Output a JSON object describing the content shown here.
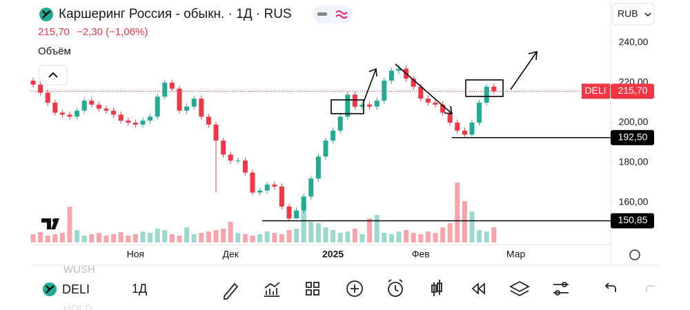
{
  "header": {
    "title": "Каршеринг Россия - обыкн. · 1Д · RUS",
    "price": "215,70",
    "change": "−2,30 (−1,06%)",
    "volume_label": "Объём",
    "currency": "RUB"
  },
  "chart_data": {
    "type": "candlestick",
    "categories": [
      null,
      null,
      null,
      null,
      null,
      null,
      null,
      null,
      null,
      null,
      null,
      null,
      null,
      null,
      "Ноя",
      null,
      null,
      null,
      null,
      null,
      null,
      null,
      null,
      null,
      null,
      null,
      null,
      "Дек",
      null,
      null,
      null,
      null,
      null,
      null,
      null,
      null,
      null,
      null,
      null,
      null,
      null,
      "2025",
      null,
      null,
      null,
      null,
      null,
      null,
      null,
      null,
      null,
      null,
      null,
      "Фев",
      null,
      null,
      null,
      null,
      null,
      null,
      null,
      null,
      null,
      null,
      null,
      null,
      "Мар",
      null
    ],
    "open": [
      221,
      219,
      215,
      210,
      205,
      204,
      203,
      206,
      211,
      209,
      207,
      206,
      204,
      201,
      200,
      199,
      201,
      203,
      213,
      220,
      217,
      206,
      208,
      212,
      203,
      199,
      191,
      184,
      181,
      181,
      175,
      165,
      166,
      169,
      168,
      158,
      152,
      156,
      163,
      172,
      183,
      191,
      196,
      203,
      214,
      208,
      209,
      208,
      211,
      221,
      226,
      227,
      222,
      218,
      212,
      210,
      209,
      205,
      200,
      196,
      194,
      200,
      210,
      218,
      null,
      null,
      null,
      null
    ],
    "high": [
      222.5,
      220.5,
      216.5,
      211.5,
      206.5,
      205.5,
      207.5,
      212.5,
      212.5,
      210.5,
      208.5,
      207.5,
      205.5,
      202.5,
      201.5,
      202.5,
      204.5,
      214.5,
      221.5,
      221.5,
      218.5,
      209.5,
      213.5,
      213.5,
      204.5,
      200.5,
      192.5,
      185.5,
      182.5,
      182.5,
      176.5,
      167.5,
      170.5,
      170.5,
      169.5,
      159.5,
      157.5,
      164.5,
      173.5,
      184.5,
      192.5,
      197.5,
      204.5,
      215.5,
      215.5,
      210.5,
      210.5,
      212.5,
      222.5,
      227.5,
      228.5,
      228.5,
      223.5,
      219.5,
      213.5,
      211.5,
      210.5,
      206.5,
      201.5,
      197.5,
      201.5,
      211.5,
      219.5,
      219.5,
      null,
      null,
      null,
      null
    ],
    "low": [
      217.5,
      213.5,
      208.5,
      203.5,
      202.5,
      201.5,
      201.5,
      204.5,
      207.5,
      205.5,
      204.5,
      202.5,
      199.5,
      198.5,
      197.5,
      197.5,
      199.5,
      201.5,
      211.5,
      215.5,
      204.5,
      204.5,
      206.5,
      201.5,
      197.5,
      165,
      182.5,
      179.5,
      179.5,
      173.5,
      163.5,
      163.5,
      164.5,
      166.5,
      156.5,
      150.85,
      152,
      154.5,
      161.5,
      170.5,
      181.5,
      189.5,
      194.5,
      201.5,
      206.5,
      206.5,
      206.5,
      206.5,
      209.5,
      219.5,
      224.5,
      220.5,
      216.5,
      210.5,
      208.5,
      207.5,
      203.5,
      198.5,
      194.5,
      192.5,
      193,
      198.5,
      208.5,
      214.2,
      null,
      null,
      null,
      null
    ],
    "close": [
      219,
      215,
      210,
      205,
      204,
      203,
      206,
      211,
      209,
      207,
      206,
      204,
      201,
      200,
      199,
      201,
      203,
      213,
      220,
      217,
      206,
      208,
      212,
      203,
      199,
      191,
      184,
      181,
      181,
      175,
      165,
      166,
      169,
      168,
      158,
      152,
      156,
      163,
      172,
      183,
      191,
      196,
      203,
      214,
      208,
      209,
      208,
      211,
      221,
      226,
      227,
      222,
      218,
      212,
      210,
      209,
      205,
      200,
      196,
      194,
      200,
      210,
      218,
      215.7,
      null,
      null,
      null,
      null
    ],
    "volume": [
      12,
      15,
      10,
      12,
      14,
      52,
      18,
      10,
      12,
      14,
      10,
      12,
      15,
      10,
      12,
      16,
      14,
      20,
      18,
      12,
      10,
      22,
      12,
      14,
      16,
      18,
      20,
      30,
      14,
      12,
      10,
      12,
      16,
      14,
      12,
      18,
      20,
      55,
      30,
      28,
      22,
      18,
      14,
      16,
      20,
      12,
      35,
      40,
      14,
      12,
      16,
      18,
      14,
      12,
      16,
      14,
      22,
      28,
      87,
      60,
      45,
      18,
      16,
      22,
      null,
      null,
      null,
      null
    ],
    "up_color": "#22ab94",
    "down_color": "#f23645",
    "ylim": [
      140,
      260
    ],
    "yticks": [
      {
        "value": 160,
        "label": "160,00"
      },
      {
        "value": 180,
        "label": "180,00"
      },
      {
        "value": 200,
        "label": "200,00"
      },
      {
        "value": 220,
        "label": "220,00"
      },
      {
        "value": 240,
        "label": "240,00"
      }
    ],
    "price_lines": [
      {
        "name": "DELI",
        "value": 215.7,
        "label": "215,70",
        "color": "#f23645"
      },
      {
        "value": 192.5,
        "label": "192,50",
        "color": "#000000"
      },
      {
        "value": 150.85,
        "label": "150,85",
        "color": "#000000"
      }
    ]
  },
  "toolbar": {
    "symbol": "DELI",
    "interval": "1Д",
    "watchlist": [
      "WUSH",
      "HOLD"
    ]
  }
}
